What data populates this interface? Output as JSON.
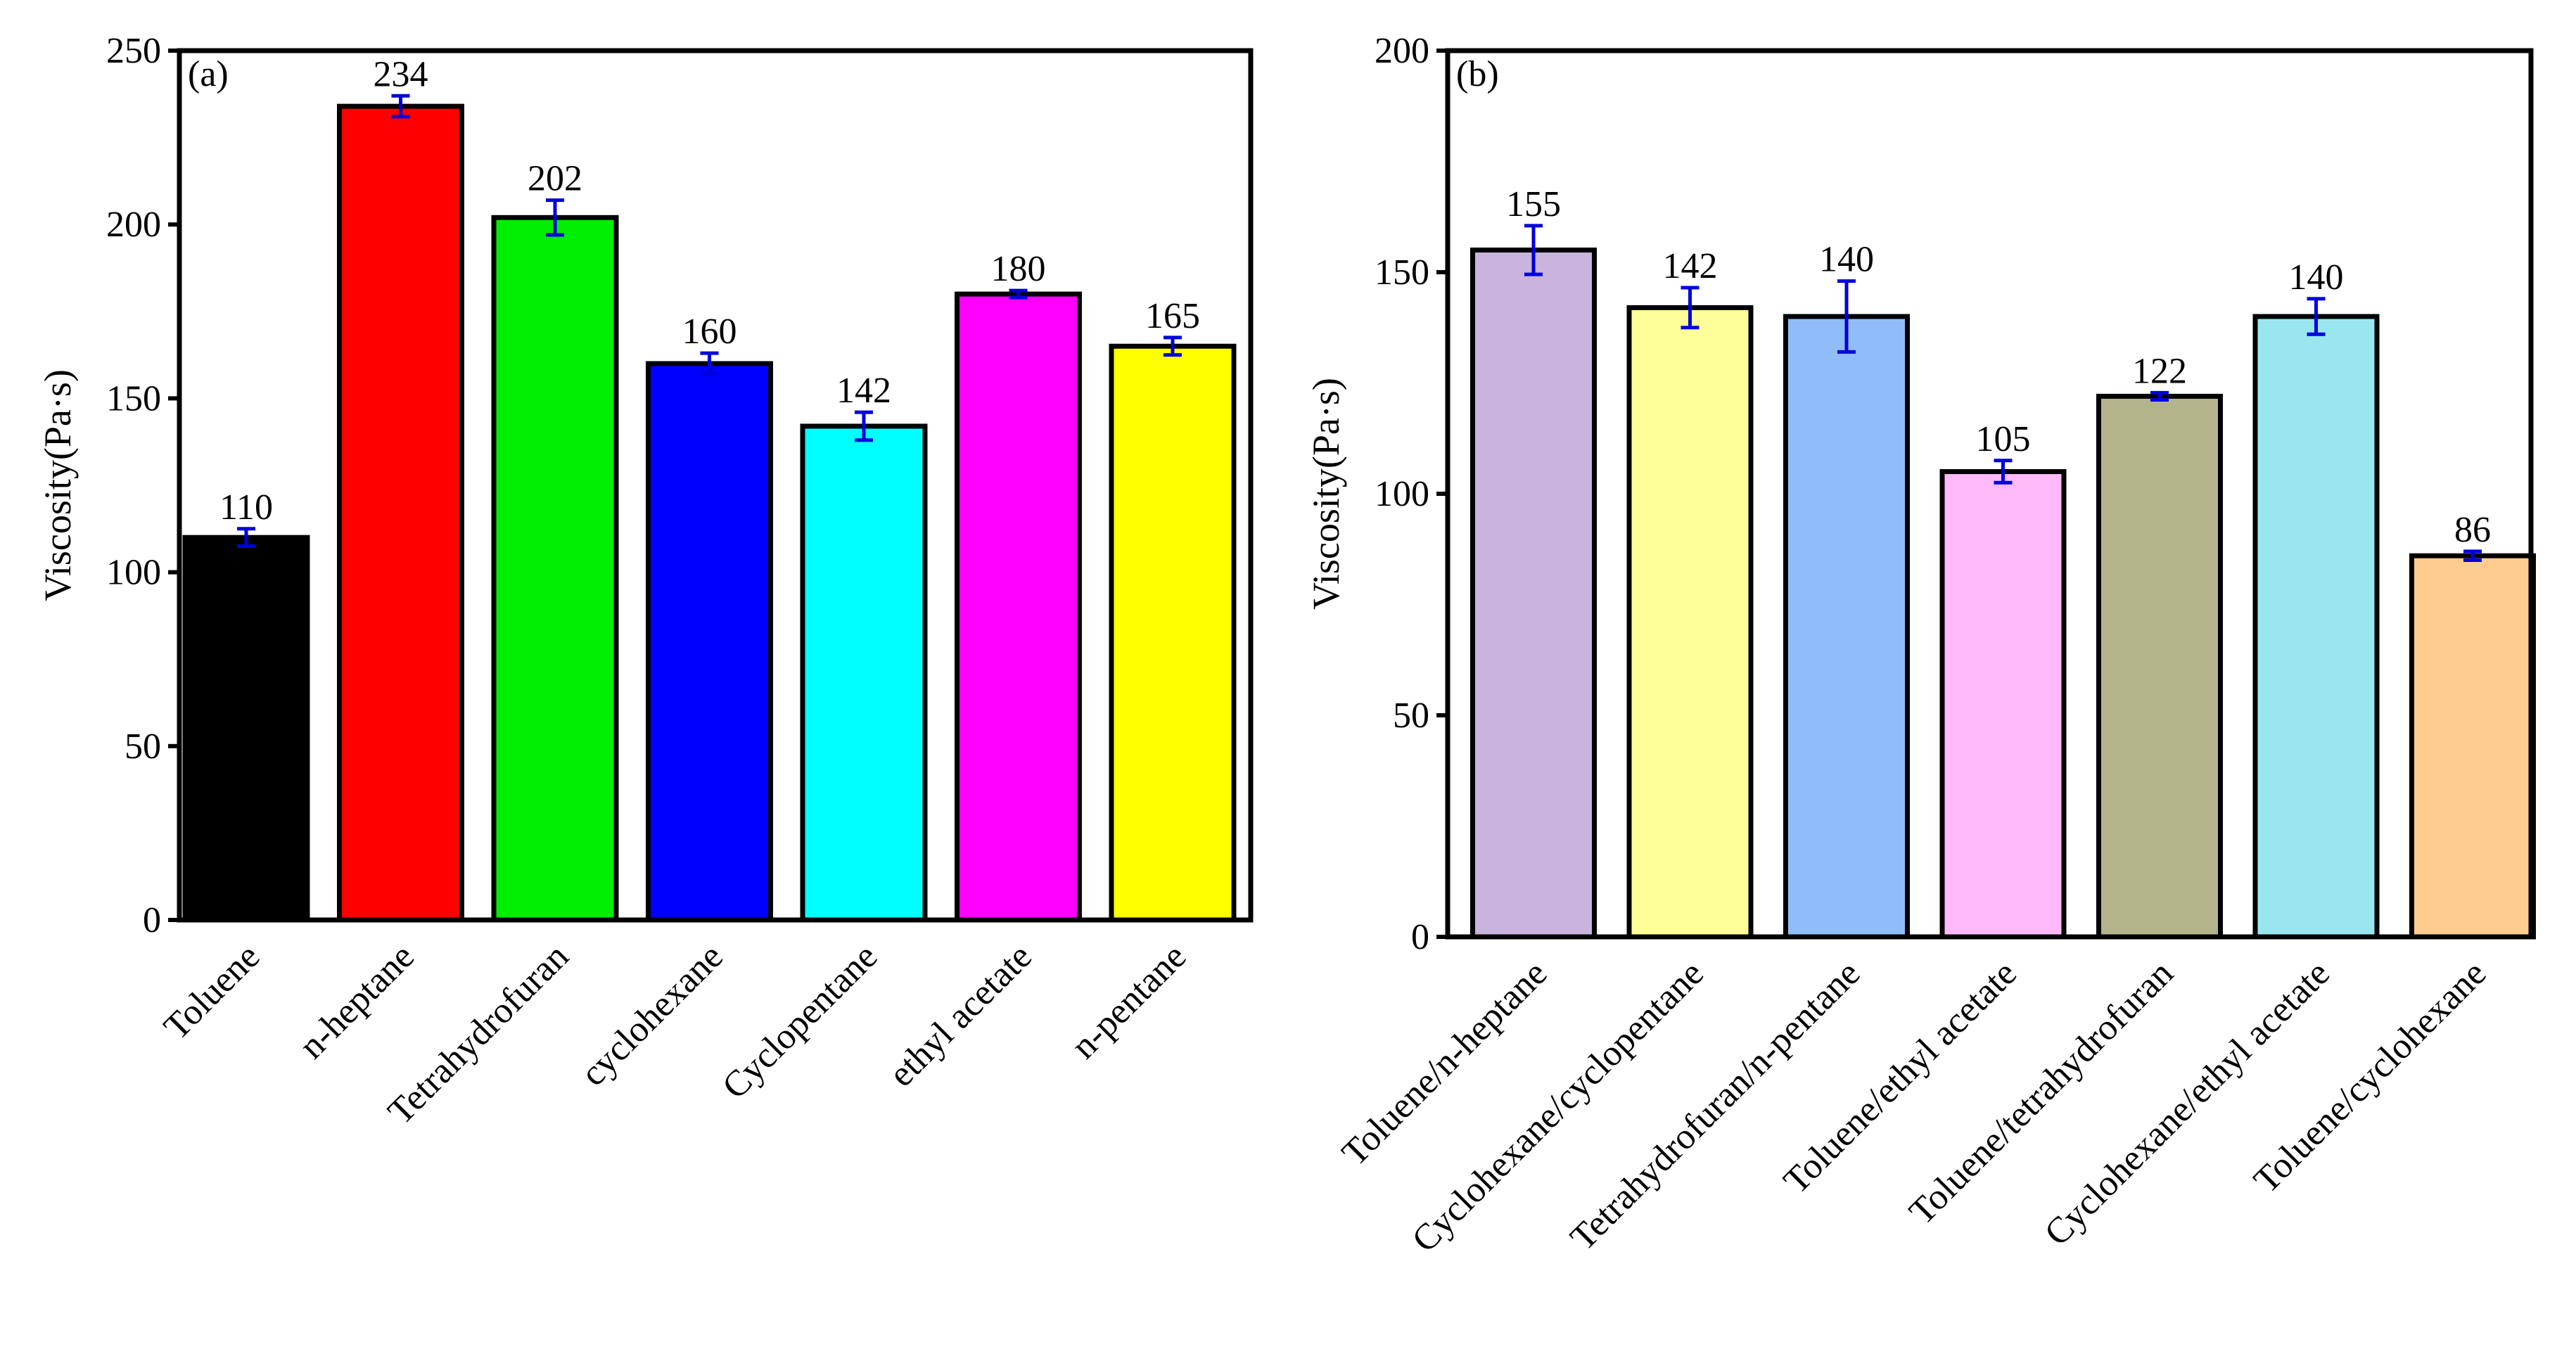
{
  "chart_data": [
    {
      "type": "bar",
      "panel_label": "(a)",
      "title": "",
      "xlabel": "",
      "ylabel": "Viscosity(Pa·s)",
      "ylim": [
        0,
        250
      ],
      "yticks": [
        0,
        50,
        100,
        150,
        200,
        250
      ],
      "grid": false,
      "categories": [
        "Toluene",
        "n-heptane",
        "Tetrahydrofuran",
        "cyclohexane",
        "Cyclopentane",
        "ethyl acetate",
        "n-pentane"
      ],
      "values": [
        110,
        234,
        202,
        160,
        142,
        180,
        165
      ],
      "errors": [
        2.5,
        3,
        5,
        3,
        4,
        1,
        2.5
      ],
      "data_labels": [
        "110",
        "234",
        "202",
        "160",
        "142",
        "180",
        "165"
      ],
      "colors": [
        "#000000",
        "#ff0000",
        "#00ee00",
        "#0000ff",
        "#00ffff",
        "#ff00ff",
        "#ffff00"
      ]
    },
    {
      "type": "bar",
      "panel_label": "(b)",
      "title": "",
      "xlabel": "",
      "ylabel": "Viscosity(Pa·s)",
      "ylim": [
        0,
        200
      ],
      "yticks": [
        0,
        50,
        100,
        150,
        200
      ],
      "grid": false,
      "categories": [
        "Toluene/n-heptane",
        "Cyclohexane/cyclopentane",
        "Tetrahydrofuran/n-pentane",
        "Toluene/ethyl acetate",
        "Toluene/tetrahydrofuran",
        "Cyclohexane/ethyl acetate",
        "Toluene/cyclohexane"
      ],
      "values": [
        155,
        142,
        140,
        105,
        122,
        140,
        86
      ],
      "errors": [
        5.5,
        4.5,
        8,
        2.5,
        0.8,
        4,
        1
      ],
      "data_labels": [
        "155",
        "142",
        "140",
        "105",
        "122",
        "140",
        "86"
      ],
      "colors": [
        "#c8b4dc",
        "#ffff99",
        "#8fbdf7",
        "#ffb8f8",
        "#b4b48c",
        "#9ae6ee",
        "#ffcc90"
      ]
    }
  ]
}
